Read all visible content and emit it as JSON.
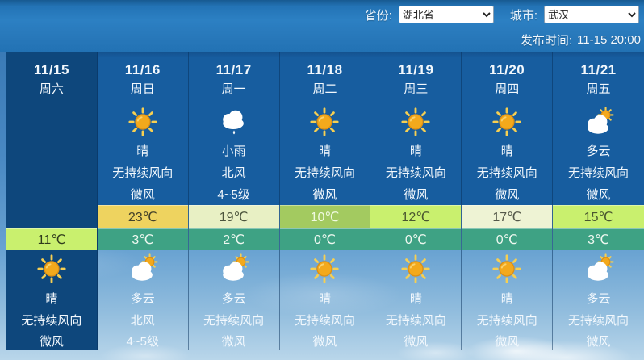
{
  "topbar": {
    "province_label": "省份:",
    "province_value": "湖北省",
    "city_label": "城市:",
    "city_value": "武汉",
    "publish_label": "发布时间:",
    "publish_time": "11-15 20:00"
  },
  "colors": {
    "low_temp_bg": "#3ea284",
    "warm_high_bg": "#eed35f",
    "mild_high_bg": "#c9f06e",
    "pale_high_bg": "#e8f0c4",
    "cream_high_bg": "#eef3d4",
    "green_high_bg": "#a3ca60",
    "today_column_bg": "#0e477c",
    "day_column_bg": "#175d9f"
  },
  "forecast": {
    "columns": [
      {
        "date": "11/15",
        "weekday": "周六",
        "day": {
          "icon": "",
          "desc": "",
          "wind_dir": "",
          "wind_power": ""
        },
        "high": "",
        "high_bg": "",
        "high_fg": "",
        "low": "11℃",
        "low_bg": "#c9f06e",
        "low_fg": "#2f3b1d",
        "night": {
          "icon": "sunny",
          "desc": "晴",
          "wind_dir": "无持续风向",
          "wind_power": "微风"
        }
      },
      {
        "date": "11/16",
        "weekday": "周日",
        "day": {
          "icon": "sunny",
          "desc": "晴",
          "wind_dir": "无持续风向",
          "wind_power": "微风"
        },
        "high": "23℃",
        "high_bg": "#eed35f",
        "high_fg": "#43412a",
        "low": "3℃",
        "low_bg": "#3ea284",
        "low_fg": "#eef8f0",
        "night": {
          "icon": "cloudy",
          "desc": "多云",
          "wind_dir": "北风",
          "wind_power": "4~5级"
        }
      },
      {
        "date": "11/17",
        "weekday": "周一",
        "day": {
          "icon": "light-rain",
          "desc": "小雨",
          "wind_dir": "北风",
          "wind_power": "4~5级"
        },
        "high": "19℃",
        "high_bg": "#e8f0c4",
        "high_fg": "#4b543c",
        "low": "2℃",
        "low_bg": "#3ea284",
        "low_fg": "#eef8f0",
        "night": {
          "icon": "cloudy",
          "desc": "多云",
          "wind_dir": "无持续风向",
          "wind_power": "微风"
        }
      },
      {
        "date": "11/18",
        "weekday": "周二",
        "day": {
          "icon": "sunny",
          "desc": "晴",
          "wind_dir": "无持续风向",
          "wind_power": "微风"
        },
        "high": "10℃",
        "high_bg": "#a3ca60",
        "high_fg": "#f0fae0",
        "low": "0℃",
        "low_bg": "#3ea284",
        "low_fg": "#eef8f0",
        "night": {
          "icon": "sunny",
          "desc": "晴",
          "wind_dir": "无持续风向",
          "wind_power": "微风"
        }
      },
      {
        "date": "11/19",
        "weekday": "周三",
        "day": {
          "icon": "sunny",
          "desc": "晴",
          "wind_dir": "无持续风向",
          "wind_power": "微风"
        },
        "high": "12℃",
        "high_bg": "#c9f06e",
        "high_fg": "#4a5630",
        "low": "0℃",
        "low_bg": "#3ea284",
        "low_fg": "#eef8f0",
        "night": {
          "icon": "sunny",
          "desc": "晴",
          "wind_dir": "无持续风向",
          "wind_power": "微风"
        }
      },
      {
        "date": "11/20",
        "weekday": "周四",
        "day": {
          "icon": "sunny",
          "desc": "晴",
          "wind_dir": "无持续风向",
          "wind_power": "微风"
        },
        "high": "17℃",
        "high_bg": "#eef3d4",
        "high_fg": "#54584a",
        "low": "0℃",
        "low_bg": "#3ea284",
        "low_fg": "#eef8f0",
        "night": {
          "icon": "sunny",
          "desc": "晴",
          "wind_dir": "无持续风向",
          "wind_power": "微风"
        }
      },
      {
        "date": "11/21",
        "weekday": "周五",
        "day": {
          "icon": "cloudy",
          "desc": "多云",
          "wind_dir": "无持续风向",
          "wind_power": "微风"
        },
        "high": "15℃",
        "high_bg": "#c9f06e",
        "high_fg": "#4a5630",
        "low": "3℃",
        "low_bg": "#3ea284",
        "low_fg": "#eef8f0",
        "night": {
          "icon": "cloudy",
          "desc": "多云",
          "wind_dir": "无持续风向",
          "wind_power": "微风"
        }
      }
    ]
  }
}
